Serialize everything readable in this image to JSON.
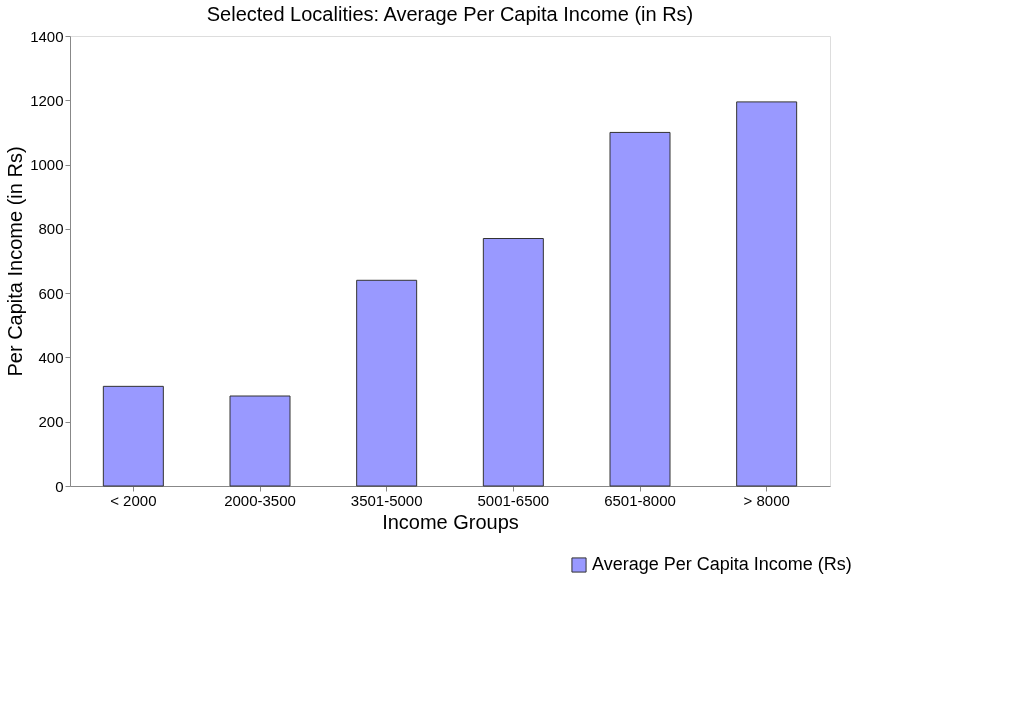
{
  "chart_data": {
    "type": "bar",
    "title": "Selected Localities: Average Per Capita Income (in Rs)",
    "xlabel": "Income Groups",
    "ylabel": "Per Capita Income (in Rs)",
    "categories": [
      "< 2000",
      "2000-3500",
      "3501-5000",
      "5001-6500",
      "6501-8000",
      "> 8000"
    ],
    "series": [
      {
        "name": "Average Per Capita Income   (Rs)",
        "color": "#9999ff",
        "values": [
          310,
          280,
          640,
          770,
          1100,
          1195
        ]
      }
    ],
    "ylim": [
      0,
      1400
    ],
    "yticks": [
      0,
      200,
      400,
      600,
      800,
      1000,
      1200,
      1400
    ],
    "grid": false,
    "legend": "bottom right"
  }
}
